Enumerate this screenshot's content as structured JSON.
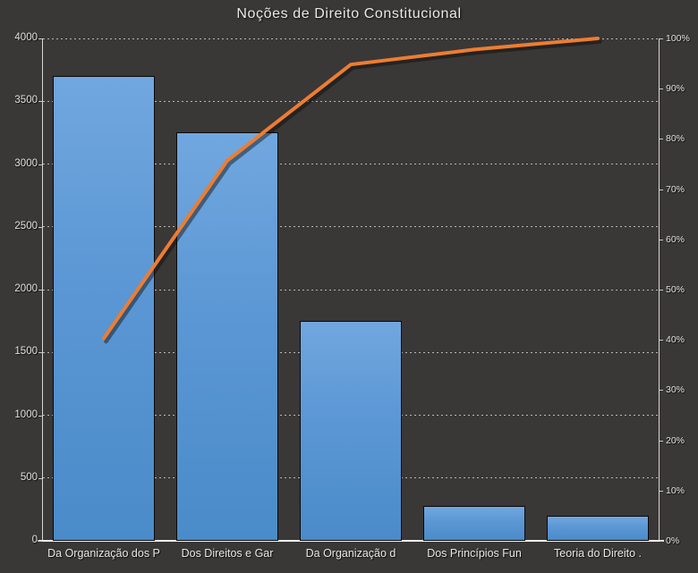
{
  "chart_data": {
    "type": "bar",
    "subtype": "pareto (columns + cumulative percentage line)",
    "title": "Noções de Direito Constitucional",
    "categories": [
      "Da Organização dos P",
      "Dos Direitos e Gar",
      "Da Organização d",
      "Dos Princípios Fun",
      "Teoria do Direito ."
    ],
    "series": [
      {
        "name": "frequency-bars",
        "type": "bar",
        "values": [
          3700,
          3250,
          1750,
          280,
          200
        ]
      },
      {
        "name": "cumulative-line",
        "type": "line",
        "values_pct": [
          40.3,
          75.7,
          94.8,
          97.8,
          100
        ]
      }
    ],
    "y_left": {
      "min": 0,
      "max": 4000,
      "step": 500,
      "ticks": [
        "0",
        "500",
        "1000",
        "1500",
        "2000",
        "2500",
        "3000",
        "3500",
        "4000"
      ]
    },
    "y_right": {
      "min": 0,
      "max": 100,
      "step": 10,
      "ticks": [
        "0%",
        "10%",
        "20%",
        "30%",
        "40%",
        "50%",
        "60%",
        "70%",
        "80%",
        "90%",
        "100%"
      ]
    },
    "xlabel": "",
    "ylabel": "",
    "legend": "none",
    "grid": "horizontal dashed lines at left-axis steps",
    "colors": {
      "background": "#3A3737",
      "bar_fill_top": "#71A7DF",
      "bar_fill_bottom": "#4A8BC9",
      "bar_border": "#0A0A0A",
      "line": "#ED7D31",
      "grid": "#E2E0E0",
      "axis": "#D8D6D6",
      "text": "#E9E7E7"
    }
  }
}
